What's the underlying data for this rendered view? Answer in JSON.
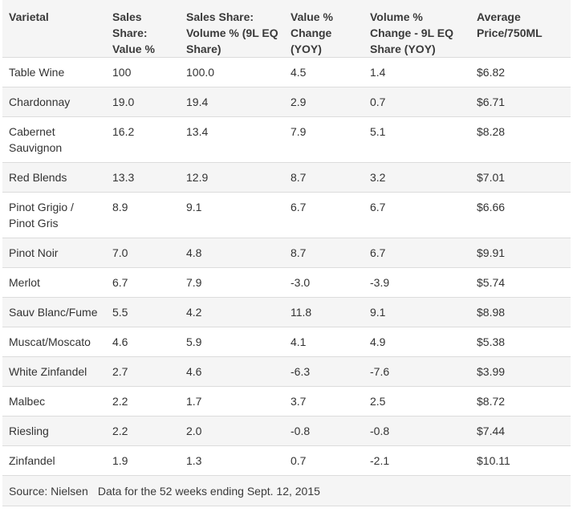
{
  "headers": [
    "Varietal",
    "Sales Share: Value %",
    "Sales Share: Volume % (9L EQ Share)",
    "Value % Change (YOY)",
    "Volume % Change - 9L EQ Share (YOY)",
    "Average Price/750ML"
  ],
  "rows": [
    {
      "varietal": "Table Wine",
      "value_share": "100",
      "volume_share": "100.0",
      "value_change": "4.5",
      "volume_change": "1.4",
      "avg_price": "$6.82"
    },
    {
      "varietal": "Chardonnay",
      "value_share": "19.0",
      "volume_share": "19.4",
      "value_change": "2.9",
      "volume_change": "0.7",
      "avg_price": "$6.71"
    },
    {
      "varietal": "Cabernet Sauvignon",
      "value_share": "16.2",
      "volume_share": "13.4",
      "value_change": "7.9",
      "volume_change": "5.1",
      "avg_price": "$8.28"
    },
    {
      "varietal": "Red Blends",
      "value_share": "13.3",
      "volume_share": "12.9",
      "value_change": "8.7",
      "volume_change": "3.2",
      "avg_price": "$7.01"
    },
    {
      "varietal": "Pinot Grigio / Pinot Gris",
      "value_share": "8.9",
      "volume_share": "9.1",
      "value_change": "6.7",
      "volume_change": "6.7",
      "avg_price": "$6.66"
    },
    {
      "varietal": "Pinot Noir",
      "value_share": "7.0",
      "volume_share": "4.8",
      "value_change": "8.7",
      "volume_change": "6.7",
      "avg_price": "$9.91"
    },
    {
      "varietal": "Merlot",
      "value_share": "6.7",
      "volume_share": "7.9",
      "value_change": "-3.0",
      "volume_change": "-3.9",
      "avg_price": "$5.74"
    },
    {
      "varietal": "Sauv Blanc/Fume",
      "value_share": "5.5",
      "volume_share": "4.2",
      "value_change": "11.8",
      "volume_change": "9.1",
      "avg_price": "$8.98"
    },
    {
      "varietal": "Muscat/Moscato",
      "value_share": "4.6",
      "volume_share": "5.9",
      "value_change": "4.1",
      "volume_change": "4.9",
      "avg_price": "$5.38"
    },
    {
      "varietal": "White Zinfandel",
      "value_share": "2.7",
      "volume_share": "4.6",
      "value_change": "-6.3",
      "volume_change": "-7.6",
      "avg_price": "$3.99"
    },
    {
      "varietal": "Malbec",
      "value_share": "2.2",
      "volume_share": "1.7",
      "value_change": "3.7",
      "volume_change": "2.5",
      "avg_price": "$8.72"
    },
    {
      "varietal": "Riesling",
      "value_share": "2.2",
      "volume_share": "2.0",
      "value_change": "-0.8",
      "volume_change": "-0.8",
      "avg_price": "$7.44"
    },
    {
      "varietal": "Zinfandel",
      "value_share": "1.9",
      "volume_share": "1.3",
      "value_change": "0.7",
      "volume_change": "-2.1",
      "avg_price": "$10.11"
    }
  ],
  "footer": {
    "source": "Source: Nielsen",
    "note": "Data for the 52 weeks ending Sept. 12, 2015"
  }
}
